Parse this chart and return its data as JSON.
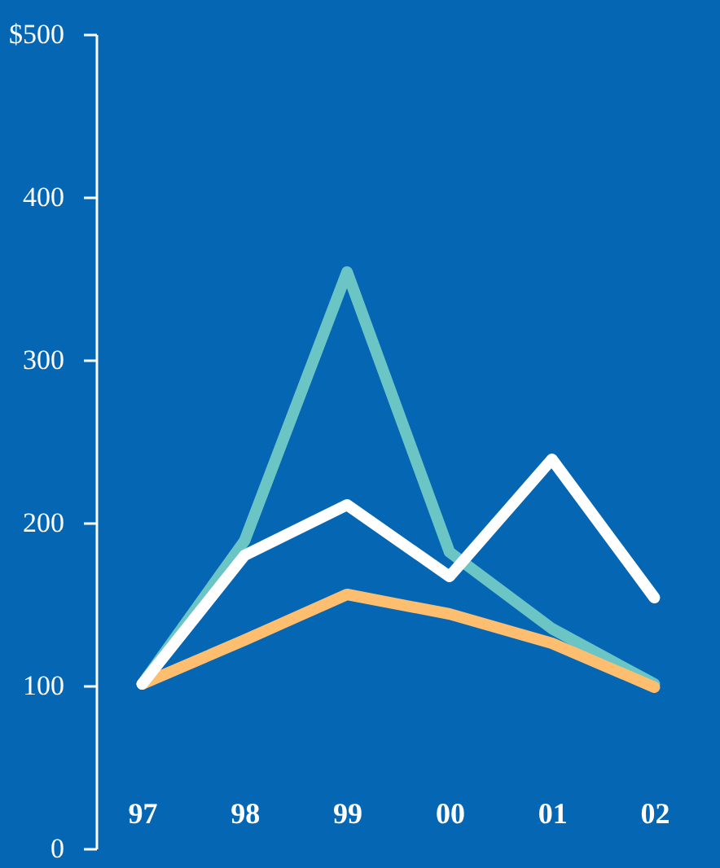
{
  "chart_data": {
    "type": "line",
    "categories": [
      "97",
      "98",
      "99",
      "00",
      "01",
      "02"
    ],
    "series": [
      {
        "color": "#6cc5c5",
        "values": [
          101,
          189,
          354,
          182,
          135,
          101
        ]
      },
      {
        "color": "#fdbf6f",
        "values": [
          101,
          128,
          156,
          144,
          126,
          99
        ]
      },
      {
        "color": "#ffffff",
        "values": [
          101,
          180,
          211,
          167,
          239,
          154
        ]
      }
    ],
    "ylim": [
      0,
      500
    ],
    "yticks": [
      0,
      100,
      200,
      300,
      400,
      {
        "value": 500,
        "label": "$500"
      }
    ],
    "grid": false,
    "marker": "none",
    "line_style": "solid"
  }
}
